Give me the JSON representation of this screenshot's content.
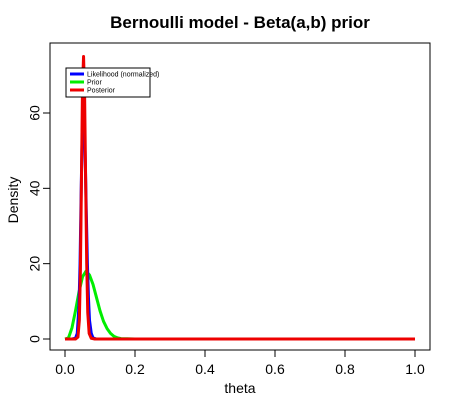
{
  "chart_data": {
    "type": "line",
    "title": "Bernoulli model - Beta(a,b) prior",
    "xlabel": "theta",
    "ylabel": "Density",
    "xlim": [
      0,
      1
    ],
    "ylim": [
      0,
      75
    ],
    "x_ticks": [
      0.0,
      0.2,
      0.4,
      0.6,
      0.8,
      1.0
    ],
    "x_tick_labels": [
      "0.0",
      "0.2",
      "0.4",
      "0.6",
      "0.8",
      "1.0"
    ],
    "y_ticks": [
      0,
      20,
      40,
      60
    ],
    "y_tick_labels": [
      "0",
      "20",
      "40",
      "60"
    ],
    "legend_position": "top-left",
    "grid": false,
    "series": [
      {
        "name": "Likelihood (normalized)",
        "color": "#0000ff",
        "x": [
          0.0,
          0.02,
          0.03,
          0.035,
          0.04,
          0.043,
          0.046,
          0.049,
          0.052,
          0.055,
          0.058,
          0.061,
          0.064,
          0.067,
          0.07,
          0.075,
          0.08,
          0.09,
          0.1,
          0.2,
          0.4,
          0.6,
          0.8,
          1.0
        ],
        "values": [
          0,
          0,
          0.2,
          1.5,
          9,
          20,
          38,
          54,
          60,
          58,
          47,
          33,
          20,
          11,
          5,
          1.5,
          0.3,
          0,
          0,
          0,
          0,
          0,
          0,
          0
        ]
      },
      {
        "name": "Prior",
        "color": "#00ee00",
        "x": [
          0.0,
          0.01,
          0.02,
          0.03,
          0.04,
          0.05,
          0.06,
          0.07,
          0.08,
          0.09,
          0.1,
          0.11,
          0.12,
          0.13,
          0.14,
          0.15,
          0.16,
          0.2,
          0.4,
          0.6,
          0.8,
          1.0
        ],
        "values": [
          0,
          0.3,
          3,
          7.5,
          12.5,
          16.5,
          18,
          17,
          14.5,
          11,
          7.5,
          4.7,
          2.8,
          1.5,
          0.7,
          0.3,
          0.1,
          0,
          0,
          0,
          0,
          0
        ]
      },
      {
        "name": "Posterior",
        "color": "#ee0000",
        "x": [
          0.0,
          0.03,
          0.037,
          0.041,
          0.044,
          0.047,
          0.05,
          0.053,
          0.056,
          0.059,
          0.062,
          0.065,
          0.069,
          0.075,
          0.085,
          0.1,
          0.2,
          0.4,
          0.6,
          0.8,
          1.0
        ],
        "values": [
          0,
          0,
          0.5,
          5,
          18,
          42,
          67,
          75,
          65,
          42,
          20,
          7,
          1.5,
          0.2,
          0,
          0,
          0,
          0,
          0,
          0,
          0
        ]
      }
    ]
  }
}
